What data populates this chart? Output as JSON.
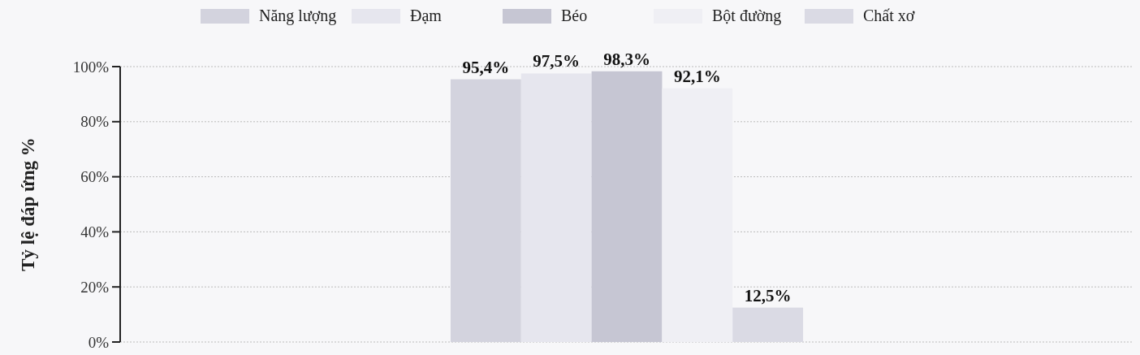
{
  "chart_data": {
    "type": "bar",
    "ylabel": "Tỷ lệ đáp ứng %",
    "categories": [
      null
    ],
    "series": [
      {
        "name": "Năng lượng",
        "color": "#d3d3de",
        "values": [
          95.4
        ],
        "value_labels": [
          "95,4%"
        ]
      },
      {
        "name": "Đạm",
        "color": "#e6e6ee",
        "values": [
          97.5
        ],
        "value_labels": [
          "97,5%"
        ]
      },
      {
        "name": "Béo",
        "color": "#c6c6d3",
        "values": [
          98.3
        ],
        "value_labels": [
          "98,3%"
        ]
      },
      {
        "name": "Bột đường",
        "color": "#efeff4",
        "values": [
          92.1
        ],
        "value_labels": [
          "92,1%"
        ]
      },
      {
        "name": "Chất xơ",
        "color": "#dadae4",
        "values": [
          12.5
        ],
        "value_labels": [
          "12,5%"
        ]
      }
    ],
    "ylim": [
      0,
      100
    ],
    "yticks": [
      {
        "value": 0,
        "label": "0%"
      },
      {
        "value": 20,
        "label": "20%"
      },
      {
        "value": 40,
        "label": "40%"
      },
      {
        "value": 60,
        "label": "60%"
      },
      {
        "value": 80,
        "label": "80%"
      },
      {
        "value": 100,
        "label": "100%"
      }
    ],
    "grid": "y",
    "legend": "top"
  }
}
